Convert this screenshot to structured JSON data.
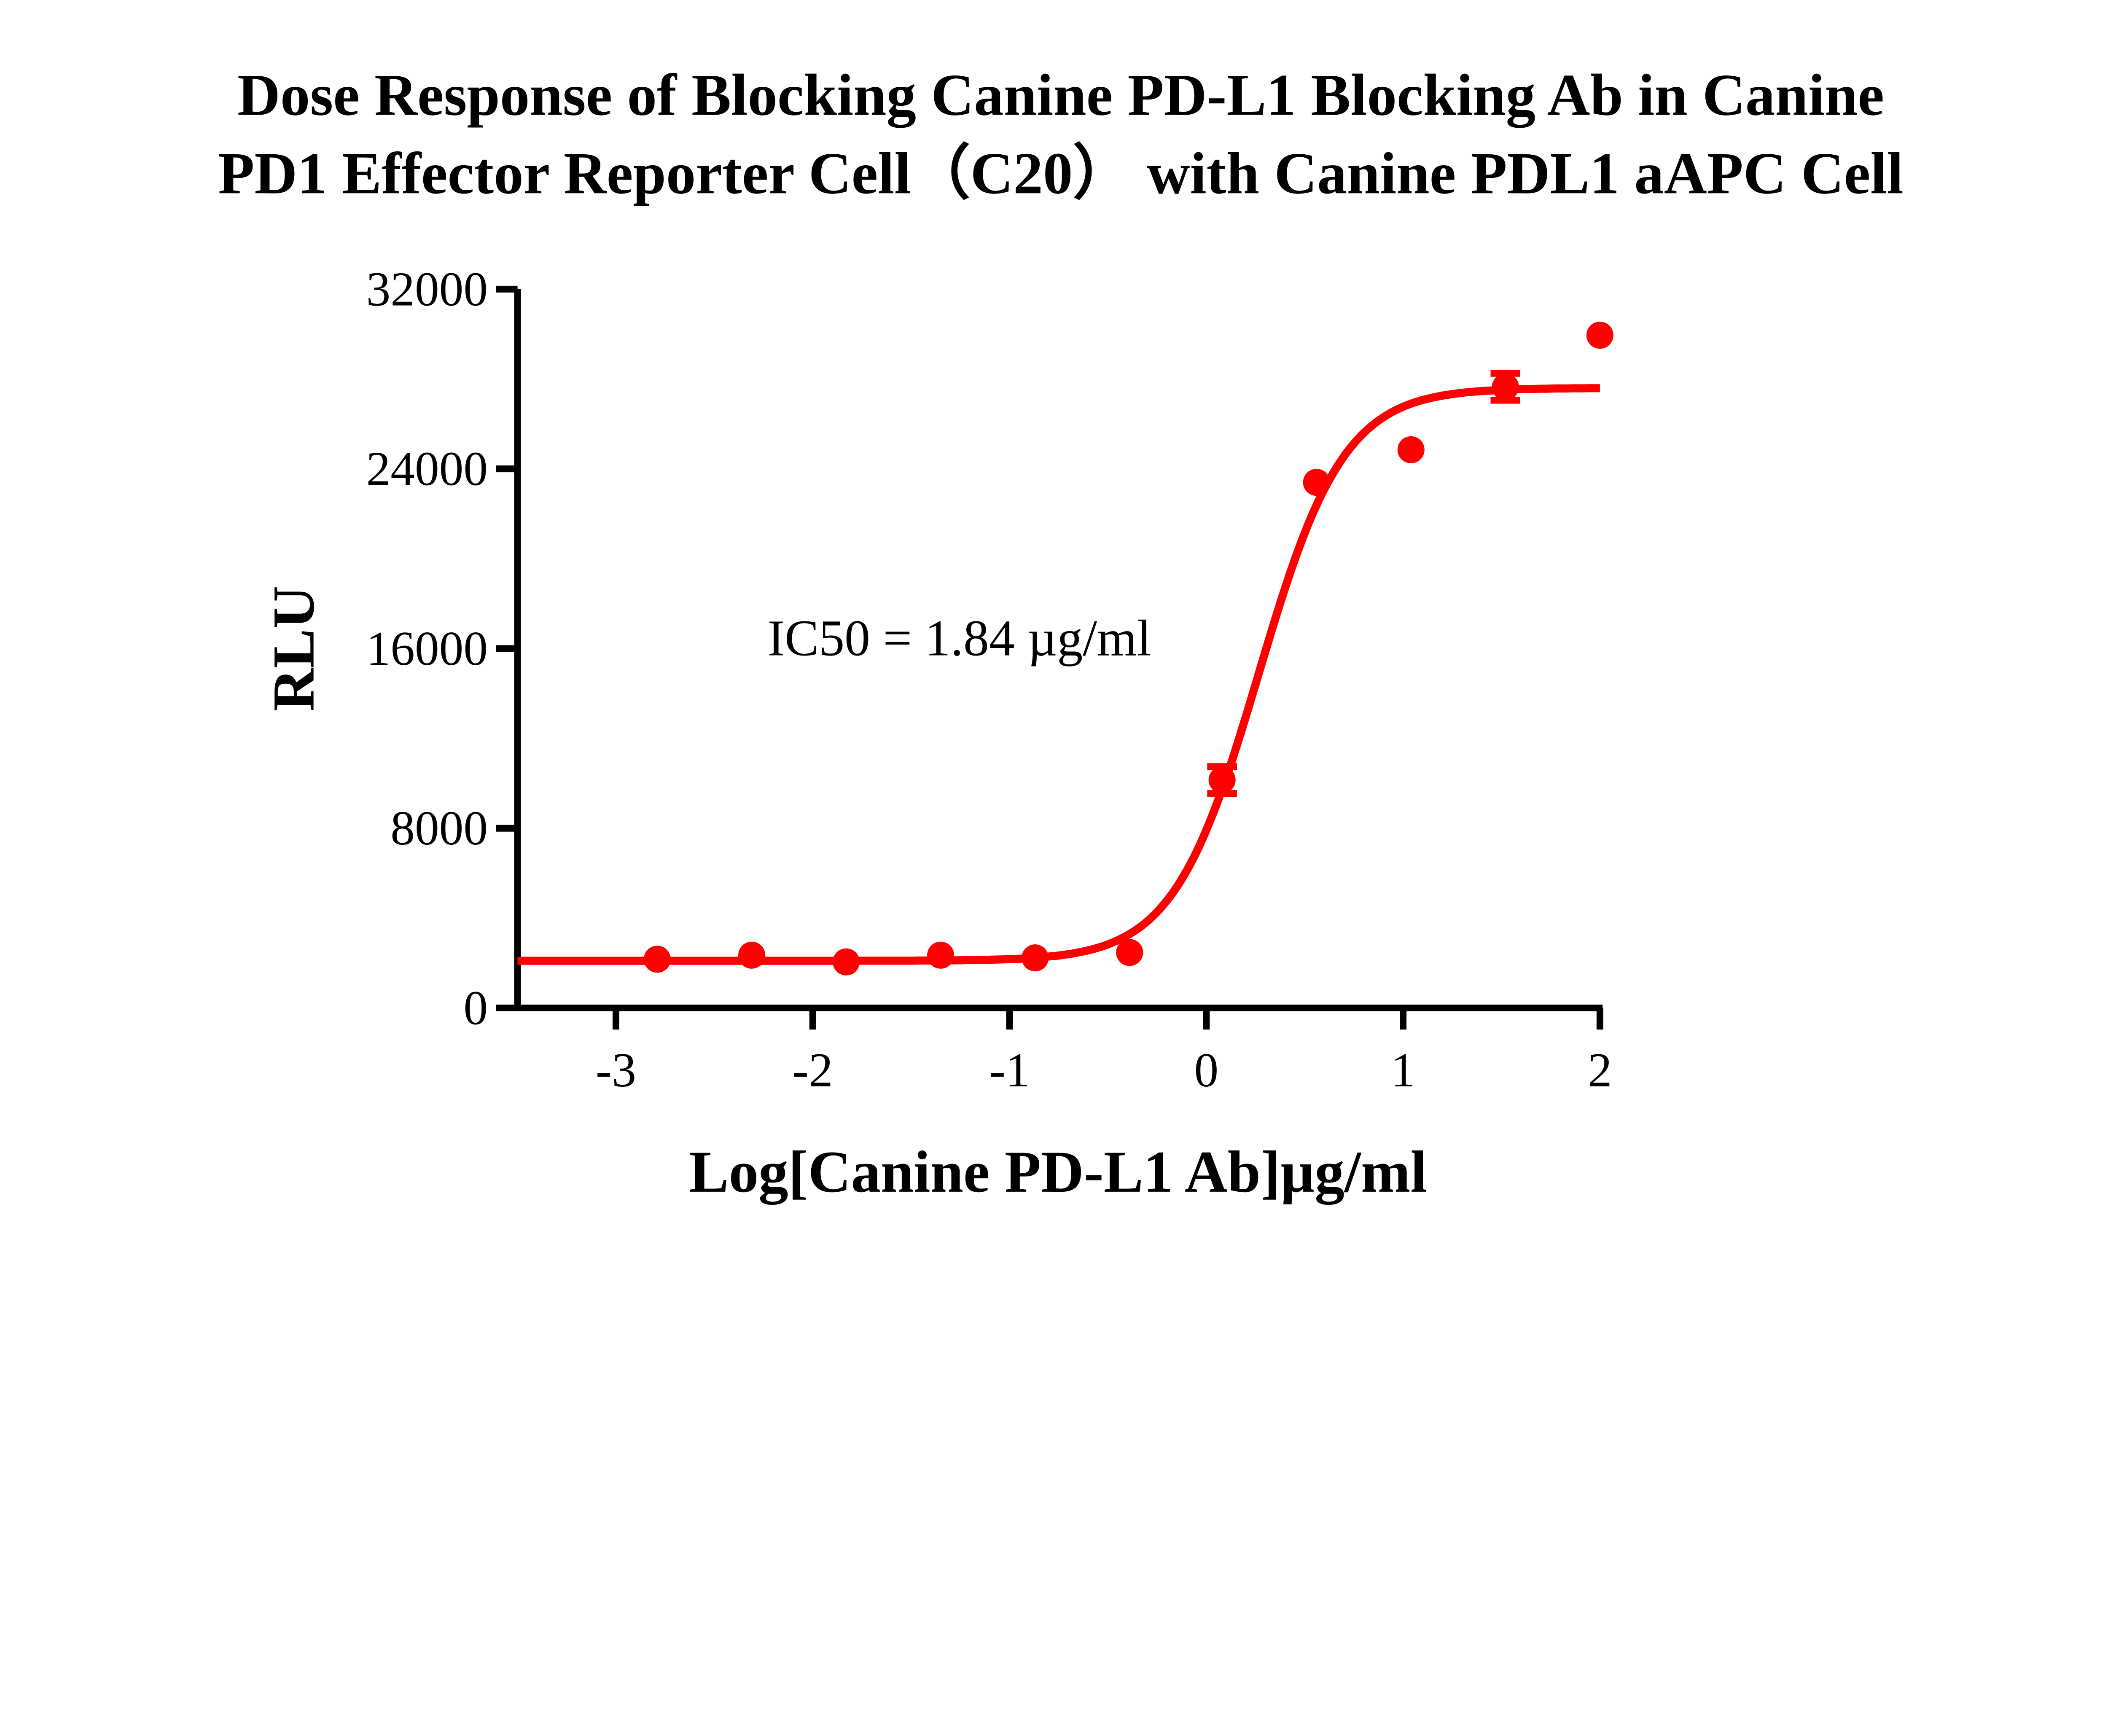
{
  "chart_data": {
    "type": "scatter",
    "title_lines": [
      "Dose Response of Blocking Canine PD-L1 Blocking Ab in Canine",
      "PD1 Effector Reporter Cell（C20） with Canine PDL1 aAPC Cell"
    ],
    "xlabel": "Log[Canine PD-L1 Ab]µg/ml",
    "ylabel": "RLU",
    "xlim": [
      -3.5,
      2
    ],
    "ylim": [
      0,
      32000
    ],
    "xticks": [
      "-3",
      "-2",
      "-1",
      "0",
      "1",
      "2"
    ],
    "yticks": [
      "0",
      "8000",
      "16000",
      "24000",
      "32000"
    ],
    "grid": false,
    "color": "#ff0000",
    "annotation": "IC50 = 1.84 µg/ml",
    "points": [
      {
        "x": -2.79,
        "y": 2170
      },
      {
        "x": -2.31,
        "y": 2350
      },
      {
        "x": -1.83,
        "y": 2050
      },
      {
        "x": -1.35,
        "y": 2350
      },
      {
        "x": -0.87,
        "y": 2230
      },
      {
        "x": -0.39,
        "y": 2470
      },
      {
        "x": 0.08,
        "y": 10150,
        "err": 600
      },
      {
        "x": 0.56,
        "y": 23400
      },
      {
        "x": 1.04,
        "y": 24850
      },
      {
        "x": 1.52,
        "y": 27650,
        "err": 600
      },
      {
        "x": 2.0,
        "y": 29950
      }
    ],
    "fit": {
      "bottom": 2100,
      "top": 27600,
      "log_ic50": 0.265,
      "hill": 2.0,
      "x_range": [
        -3.5,
        2
      ]
    }
  }
}
